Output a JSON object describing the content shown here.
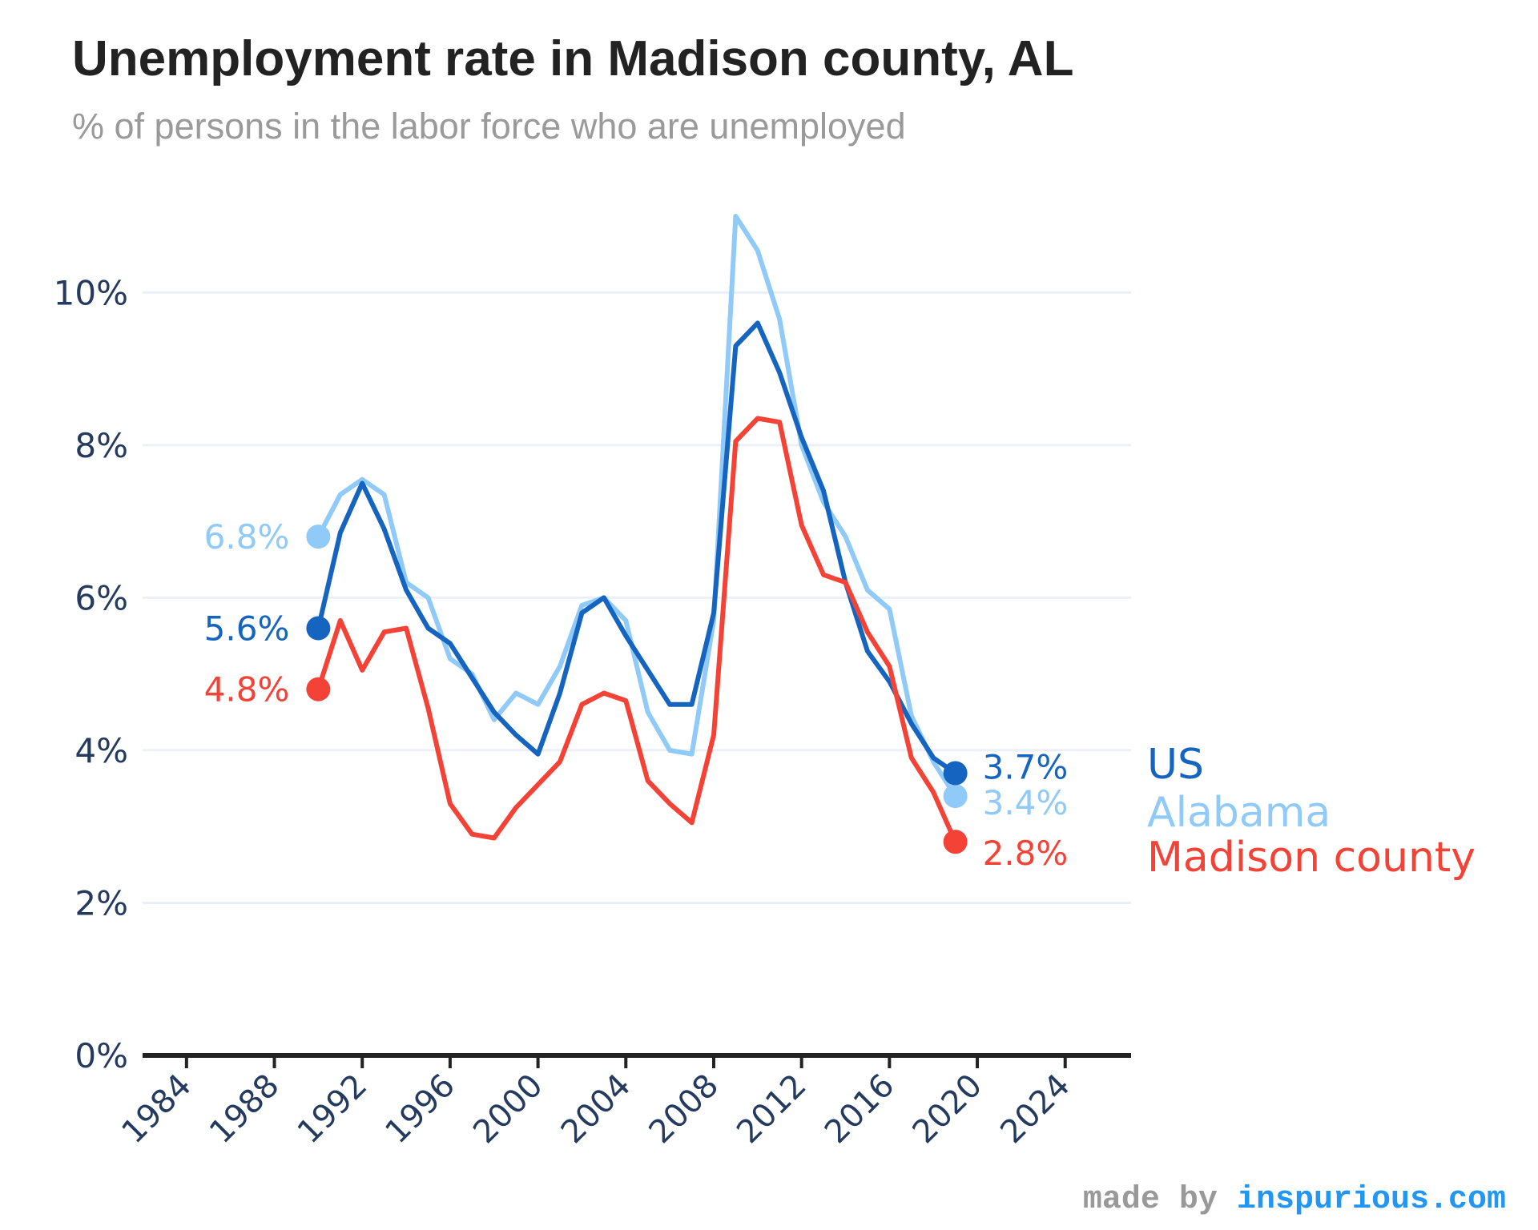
{
  "title": "Unemployment rate in Madison county, AL",
  "subtitle": "% of persons in the labor force who are unemployed",
  "credit": {
    "prefix": "made by ",
    "site": "inspurious.com"
  },
  "chart_data": {
    "type": "line",
    "x": [
      1990,
      1991,
      1992,
      1993,
      1994,
      1995,
      1996,
      1997,
      1998,
      1999,
      2000,
      2001,
      2002,
      2003,
      2004,
      2005,
      2006,
      2007,
      2008,
      2009,
      2010,
      2011,
      2012,
      2013,
      2014,
      2015,
      2016,
      2017,
      2018,
      2019
    ],
    "xlim": [
      1982,
      2027
    ],
    "ylim": [
      0,
      11
    ],
    "xticks": [
      1984,
      1988,
      1992,
      1996,
      2000,
      2004,
      2008,
      2012,
      2016,
      2020,
      2024
    ],
    "xtick_labels": [
      "1984",
      "1988",
      "1992",
      "1996",
      "2000",
      "2004",
      "2008",
      "2012",
      "2016",
      "2020",
      "2024"
    ],
    "yticks": [
      0,
      2,
      4,
      6,
      8,
      10
    ],
    "ytick_labels": [
      "0%",
      "2%",
      "4%",
      "6%",
      "8%",
      "10%"
    ],
    "grid": true,
    "series": [
      {
        "name": "Alabama",
        "color": "#90caf9",
        "values": [
          6.8,
          7.35,
          7.55,
          7.35,
          6.2,
          6.0,
          5.2,
          5.0,
          4.4,
          4.75,
          4.6,
          5.1,
          5.9,
          6.0,
          5.7,
          4.5,
          4.0,
          3.95,
          5.7,
          11.0,
          10.55,
          9.65,
          8.0,
          7.25,
          6.8,
          6.1,
          5.85,
          4.45,
          3.85,
          3.4
        ],
        "start_label": "6.8%",
        "end_label": "3.4%"
      },
      {
        "name": "US",
        "color": "#1565c0",
        "values": [
          5.6,
          6.85,
          7.5,
          6.9,
          6.1,
          5.6,
          5.4,
          4.95,
          4.5,
          4.2,
          3.95,
          4.75,
          5.8,
          6.0,
          5.5,
          5.05,
          4.6,
          4.6,
          5.8,
          9.3,
          9.6,
          8.95,
          8.1,
          7.4,
          6.2,
          5.3,
          4.9,
          4.35,
          3.9,
          3.7
        ],
        "start_label": "5.6%",
        "end_label": "3.7%"
      },
      {
        "name": "Madison county",
        "color": "#f44336",
        "values": [
          4.8,
          5.7,
          5.05,
          5.55,
          5.6,
          4.55,
          3.3,
          2.9,
          2.85,
          3.25,
          3.55,
          3.85,
          4.6,
          4.75,
          4.65,
          3.6,
          3.3,
          3.05,
          4.2,
          8.05,
          8.35,
          8.3,
          6.95,
          6.3,
          6.2,
          5.55,
          5.1,
          3.9,
          3.45,
          2.8
        ],
        "start_label": "4.8%",
        "end_label": "2.8%"
      }
    ],
    "legend": [
      {
        "name": "US",
        "color": "#1565c0"
      },
      {
        "name": "Alabama",
        "color": "#90caf9"
      },
      {
        "name": "Madison county",
        "color": "#f44336"
      }
    ],
    "axis_color": "#243a5e",
    "grid_color": "#ebf0f8"
  }
}
